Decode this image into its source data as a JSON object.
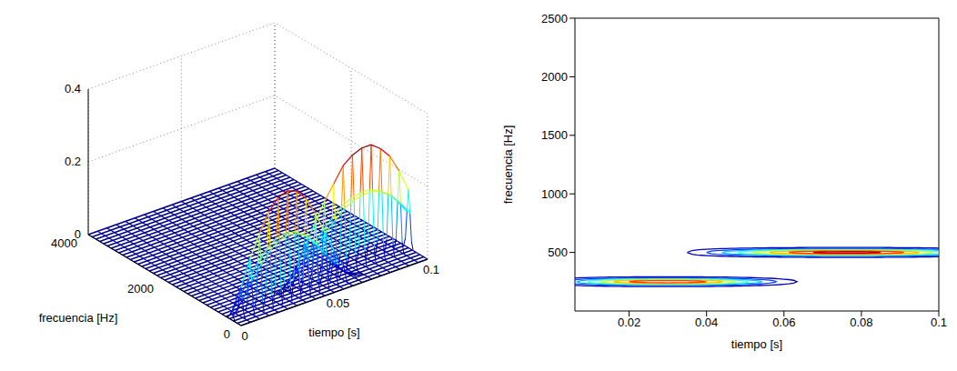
{
  "chart_data": [
    {
      "type": "surface",
      "x_label": "tiempo [s]",
      "y_label": "frecuencia [Hz]",
      "xlim": [
        0,
        0.1
      ],
      "xticks": [
        0,
        0.05,
        0.1
      ],
      "ylim": [
        0,
        4000
      ],
      "yticks": [
        0,
        2000,
        4000
      ],
      "zlim": [
        0,
        0.4
      ],
      "zticks": [
        0,
        0.2,
        0.4
      ],
      "grid": true,
      "x": [
        0,
        0.005,
        0.01,
        0.015,
        0.02,
        0.025,
        0.03,
        0.035,
        0.04,
        0.045,
        0.05,
        0.055,
        0.06,
        0.065,
        0.07,
        0.075,
        0.08,
        0.085,
        0.09,
        0.095,
        0.1
      ],
      "series": [
        {
          "frequency": 250,
          "values": [
            0.02,
            0.08,
            0.15,
            0.21,
            0.26,
            0.29,
            0.3,
            0.29,
            0.26,
            0.21,
            0.15,
            0.09,
            0.04,
            0.01,
            0,
            0,
            0,
            0,
            0,
            0,
            0
          ]
        },
        {
          "frequency": 500,
          "values": [
            0,
            0,
            0,
            0,
            0,
            0,
            0,
            0.02,
            0.06,
            0.11,
            0.16,
            0.21,
            0.25,
            0.29,
            0.31,
            0.32,
            0.32,
            0.3,
            0.27,
            0.22,
            0.16
          ]
        }
      ]
    },
    {
      "type": "contour",
      "x_label": "tiempo [s]",
      "y_label": "frecuencia [Hz]",
      "xlim": [
        0.006,
        0.1
      ],
      "xticks": [
        0.02,
        0.04,
        0.06,
        0.08,
        0.1
      ],
      "ylim": [
        0,
        2500
      ],
      "yticks": [
        500,
        1000,
        1500,
        2000,
        2500
      ],
      "levels": [
        0.02,
        0.06,
        0.1,
        0.14,
        0.18,
        0.22,
        0.26,
        0.3
      ],
      "x": [
        0,
        0.005,
        0.01,
        0.015,
        0.02,
        0.025,
        0.03,
        0.035,
        0.04,
        0.045,
        0.05,
        0.055,
        0.06,
        0.065,
        0.07,
        0.075,
        0.08,
        0.085,
        0.09,
        0.095,
        0.1
      ],
      "series": [
        {
          "frequency": 250,
          "values": [
            0.02,
            0.08,
            0.15,
            0.21,
            0.26,
            0.29,
            0.3,
            0.29,
            0.26,
            0.21,
            0.15,
            0.09,
            0.04,
            0.01,
            0,
            0,
            0,
            0,
            0,
            0,
            0
          ]
        },
        {
          "frequency": 500,
          "values": [
            0,
            0,
            0,
            0,
            0,
            0,
            0,
            0.02,
            0.06,
            0.11,
            0.16,
            0.21,
            0.25,
            0.29,
            0.31,
            0.32,
            0.32,
            0.3,
            0.27,
            0.22,
            0.16
          ]
        }
      ]
    }
  ]
}
